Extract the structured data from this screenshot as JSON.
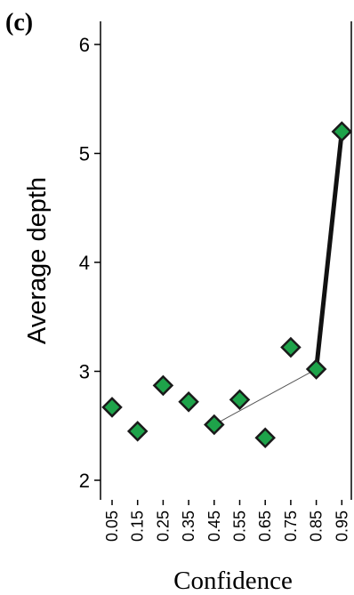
{
  "panel_label": "(c)",
  "chart_data": {
    "type": "scatter",
    "xlabel": "Confidence",
    "ylabel": "Average depth",
    "x_categories": [
      "0.05",
      "0.15",
      "0.25",
      "0.35",
      "0.45",
      "0.55",
      "0.65",
      "0.75",
      "0.85",
      "0.95"
    ],
    "y_ticks": [
      "2",
      "3",
      "4",
      "5",
      "6"
    ],
    "ylim": [
      1.8,
      6.2
    ],
    "grid": false,
    "points": [
      {
        "x": "0.05",
        "y": 2.67
      },
      {
        "x": "0.15",
        "y": 2.45
      },
      {
        "x": "0.25",
        "y": 2.87
      },
      {
        "x": "0.35",
        "y": 2.72
      },
      {
        "x": "0.45",
        "y": 2.51
      },
      {
        "x": "0.55",
        "y": 2.74
      },
      {
        "x": "0.65",
        "y": 2.39
      },
      {
        "x": "0.75",
        "y": 3.22
      },
      {
        "x": "0.85",
        "y": 3.02
      },
      {
        "x": "0.95",
        "y": 5.2
      }
    ],
    "fit_lines": [
      {
        "from": "0.45",
        "to": "0.85",
        "y_from": 2.51,
        "y_to": 3.02,
        "style": "thin"
      },
      {
        "from": "0.85",
        "to": "0.95",
        "y_from": 3.02,
        "y_to": 5.2,
        "style": "thick"
      }
    ],
    "marker_color": "#1ea34a",
    "marker_edge_color": "#1a1a1a"
  }
}
